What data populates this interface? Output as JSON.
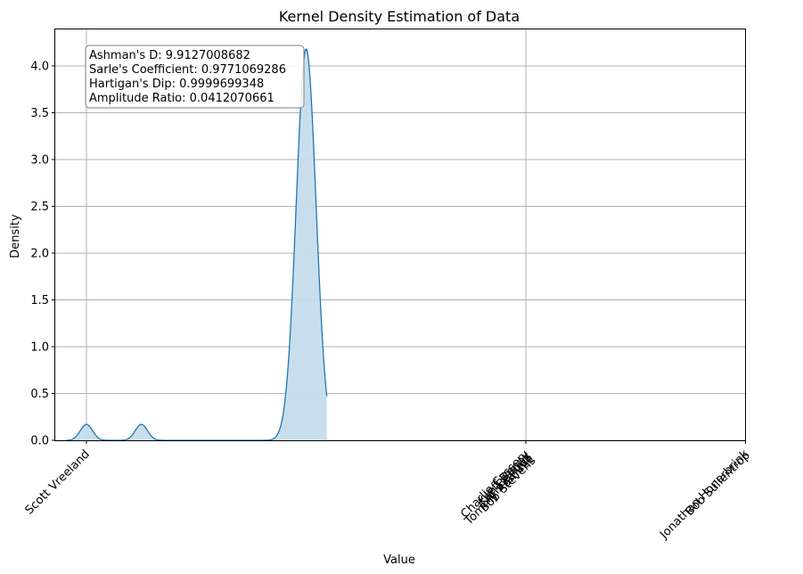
{
  "chart_data": {
    "type": "area",
    "title": "Kernel Density Estimation of Data",
    "xlabel": "Value",
    "ylabel": "Density",
    "ylim": [
      0,
      4.4
    ],
    "grid": true,
    "colors": {
      "fill": "#c6dcec",
      "line": "#1f77b4",
      "grid": "#b0b0b0"
    },
    "y_ticks": [
      "0.0",
      "0.5",
      "1.0",
      "1.5",
      "2.0",
      "2.5",
      "3.0",
      "3.5",
      "4.0"
    ],
    "x_ticks": [
      {
        "index": 0,
        "labels": [
          "Scott Vreeland"
        ]
      },
      {
        "index": 20,
        "labels": [
          "Charlie Cassery",
          "Jeff Denny",
          "Ken Bellows",
          "Chris Paluch",
          "Tommy Ramirez",
          "Bob Stevens"
        ]
      },
      {
        "index": 30,
        "labels": [
          "Jonathan Honerbrink",
          "Bob Sullentrop"
        ]
      }
    ],
    "density_peaks": [
      {
        "x": 0,
        "y": 0.17
      },
      {
        "x": 2.5,
        "y": 0.17
      },
      {
        "x": 10,
        "y": 4.18
      }
    ],
    "stats": [
      "Ashman's D: 9.9127008682",
      "Sarle's Coefficient: 0.9771069286",
      "Hartigan's Dip: 0.9999699348",
      "Amplitude Ratio: 0.0412070661"
    ]
  }
}
